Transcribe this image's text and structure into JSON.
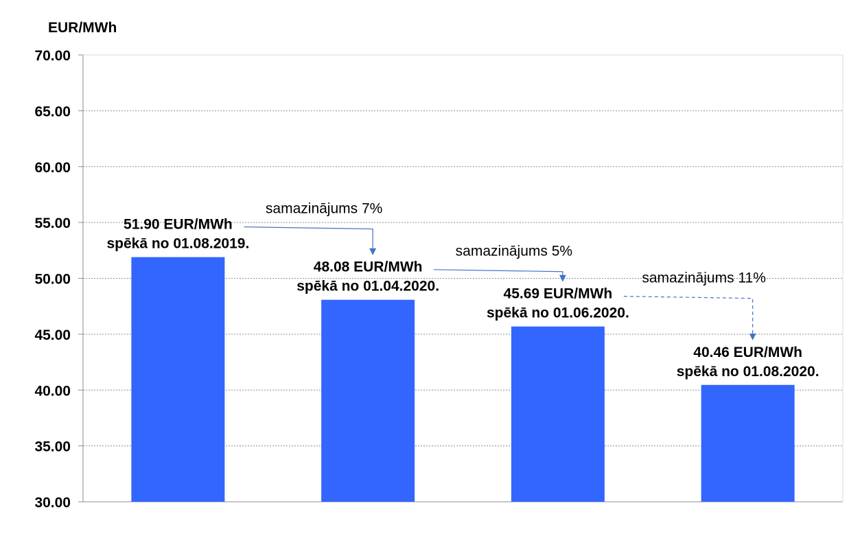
{
  "chart_data": {
    "type": "bar",
    "ylabel": "EUR/MWh",
    "ylim": [
      30,
      70
    ],
    "ytick_step": 5,
    "ytick_labels": [
      "30.00",
      "35.00",
      "40.00",
      "45.00",
      "50.00",
      "55.00",
      "60.00",
      "65.00",
      "70.00"
    ],
    "grid": true,
    "bar_color": "#3366FF",
    "values": [
      51.9,
      48.08,
      45.69,
      40.46
    ],
    "data_labels": [
      {
        "line1": "51.90 EUR/MWh",
        "line2": "spēkā no 01.08.2019."
      },
      {
        "line1": "48.08 EUR/MWh",
        "line2": "spēkā no 01.04.2020."
      },
      {
        "line1": "45.69 EUR/MWh",
        "line2": "spēkā no 01.06.2020."
      },
      {
        "line1": "40.46 EUR/MWh",
        "line2": "spēkā no 01.08.2020."
      }
    ],
    "annotations": [
      {
        "text": "samazinājums 7%",
        "from_bar": 0,
        "to_bar": 1
      },
      {
        "text": "samazinājums 5%",
        "from_bar": 1,
        "to_bar": 2
      },
      {
        "text": "samazinājums 11%",
        "from_bar": 2,
        "to_bar": 3
      }
    ],
    "annotation_color": "#4472C4"
  }
}
